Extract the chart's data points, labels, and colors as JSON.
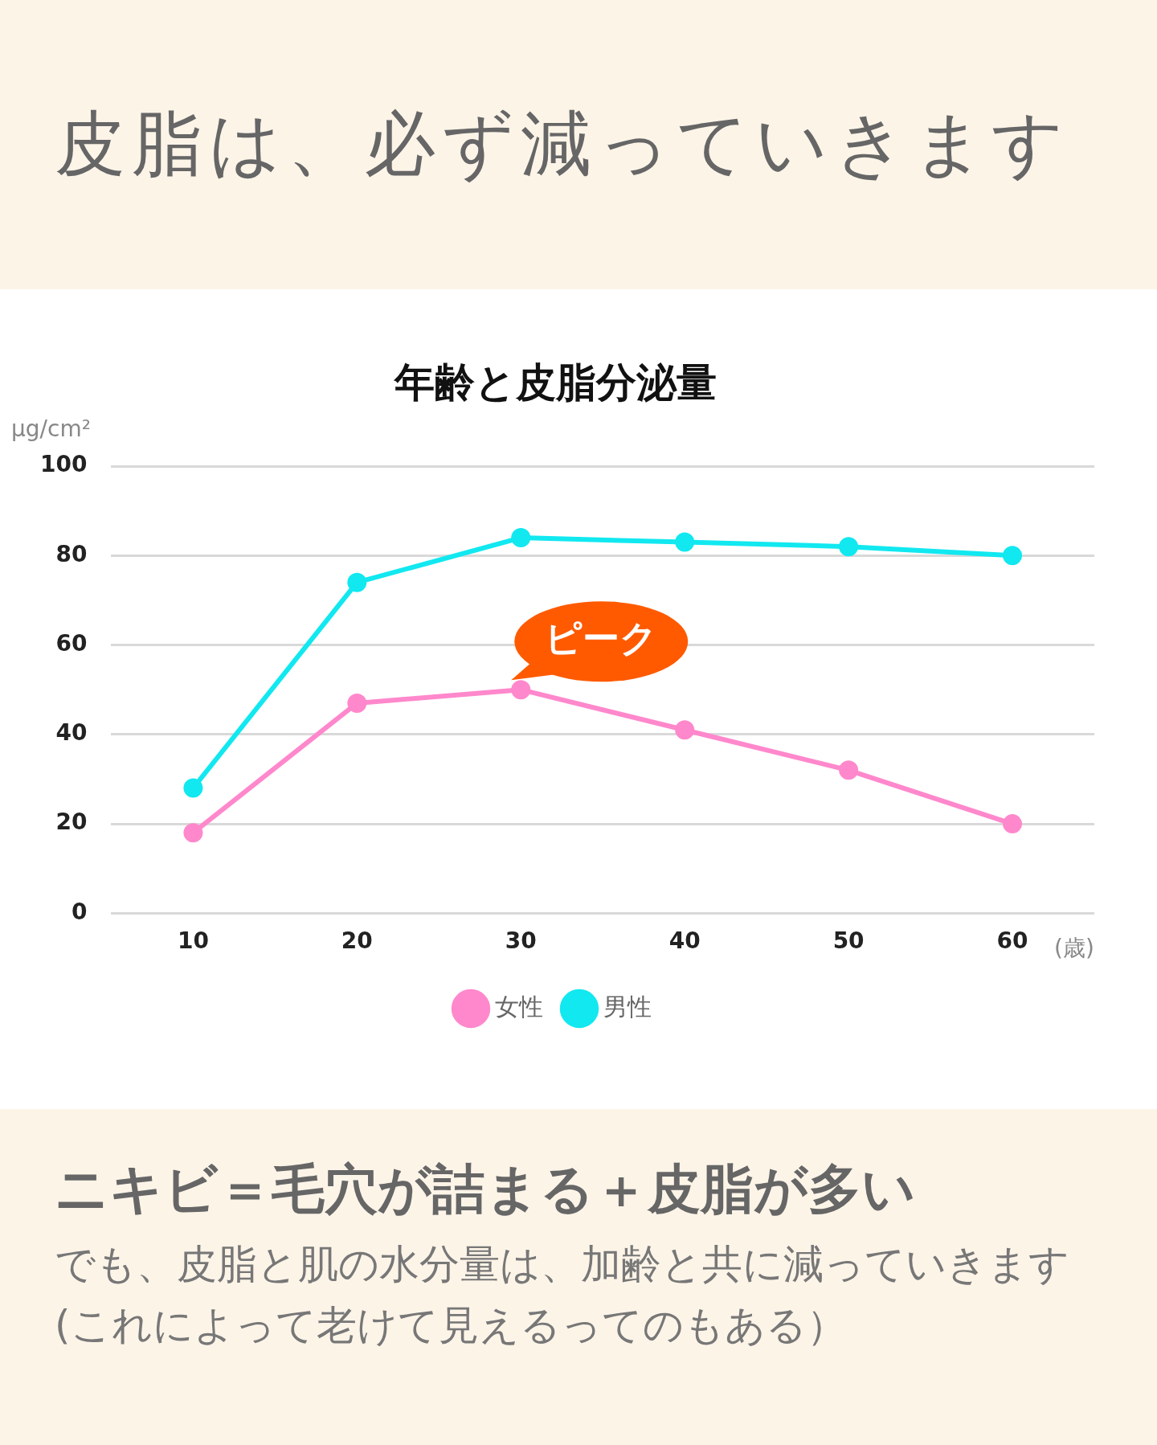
{
  "chart_data": {
    "type": "line",
    "title": "年齢と皮脂分泌量",
    "ylabel": "μg/cm²",
    "xlabel": "(歳)",
    "categories": [
      "10",
      "20",
      "30",
      "40",
      "50",
      "60"
    ],
    "series": [
      {
        "name": "女性",
        "color": "#ff88cc",
        "values": [
          18,
          47,
          50,
          41,
          32,
          20
        ]
      },
      {
        "name": "男性",
        "color": "#11e8f0",
        "values": [
          28,
          74,
          84,
          83,
          82,
          80
        ]
      }
    ],
    "ylim": [
      0,
      100
    ],
    "yticks": [
      0,
      20,
      40,
      60,
      80,
      100
    ],
    "grid": "y",
    "legend": "bottom",
    "marker": "circle",
    "line_style": "solid",
    "annotations": [
      "皮脂は、必ず減っていきます",
      {
        "text": "ピーク",
        "x": "30",
        "y": 50
      },
      "ニキビ＝毛穴が詰まる＋皮脂が多い",
      "でも、皮脂と肌の水分量は、加齢と共に減っていきます(これによって老けて見えるってのもある）"
    ]
  }
}
